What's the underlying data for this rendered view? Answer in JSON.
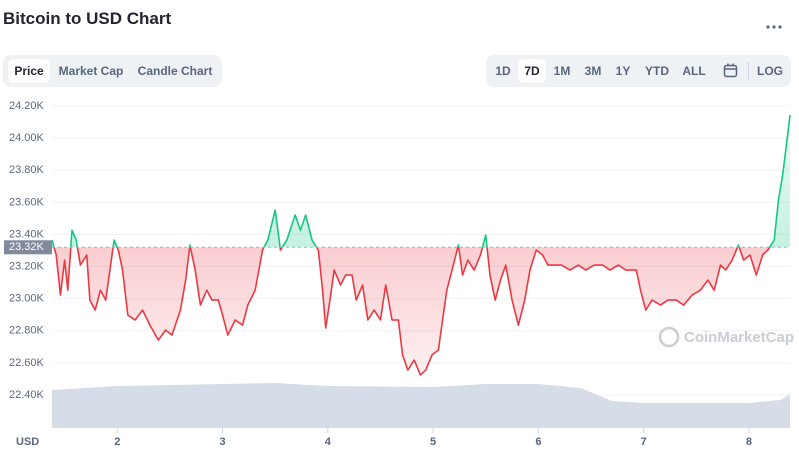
{
  "chart_data": {
    "type": "line",
    "title": "Bitcoin to USD Chart",
    "xlabel": "USD",
    "watermark": "CoinMarketCap",
    "x": [
      1.38,
      1.42,
      1.46,
      1.5,
      1.53,
      1.57,
      1.61,
      1.65,
      1.71,
      1.74,
      1.79,
      1.84,
      1.89,
      1.93,
      1.97,
      2.01,
      2.05,
      2.1,
      2.17,
      2.24,
      2.31,
      2.39,
      2.46,
      2.52,
      2.6,
      2.65,
      2.69,
      2.74,
      2.79,
      2.85,
      2.9,
      2.96,
      3.0,
      3.05,
      3.12,
      3.19,
      3.24,
      3.31,
      3.38,
      3.43,
      3.5,
      3.55,
      3.61,
      3.69,
      3.74,
      3.79,
      3.85,
      3.91,
      3.95,
      3.98,
      4.02,
      4.06,
      4.12,
      4.17,
      4.23,
      4.27,
      4.33,
      4.38,
      4.44,
      4.5,
      4.55,
      4.61,
      4.67,
      4.71,
      4.76,
      4.82,
      4.88,
      4.93,
      4.99,
      5.05,
      5.09,
      5.13,
      5.18,
      5.24,
      5.28,
      5.33,
      5.39,
      5.45,
      5.5,
      5.54,
      5.59,
      5.64,
      5.69,
      5.75,
      5.81,
      5.87,
      5.92,
      5.98,
      6.04,
      6.09,
      6.16,
      6.22,
      6.3,
      6.38,
      6.45,
      6.53,
      6.61,
      6.68,
      6.76,
      6.83,
      6.93,
      6.97,
      7.02,
      7.08,
      7.16,
      7.23,
      7.31,
      7.38,
      7.46,
      7.54,
      7.61,
      7.67,
      7.73,
      7.78,
      7.84,
      7.9,
      7.95,
      8.01,
      8.07,
      8.13,
      8.18,
      8.24,
      8.28,
      8.32,
      8.35,
      8.39
    ],
    "values": [
      23365,
      23272,
      23022,
      23240,
      23053,
      23427,
      23365,
      23209,
      23272,
      22991,
      22929,
      23053,
      22991,
      23178,
      23365,
      23303,
      23178,
      22898,
      22867,
      22929,
      22835,
      22742,
      22804,
      22773,
      22929,
      23116,
      23334,
      23178,
      22960,
      23053,
      22991,
      22991,
      22898,
      22773,
      22867,
      22835,
      22960,
      23053,
      23303,
      23365,
      23552,
      23303,
      23365,
      23521,
      23427,
      23521,
      23365,
      23303,
      23053,
      22817,
      22991,
      23178,
      23085,
      23147,
      23147,
      22991,
      23085,
      22867,
      22929,
      22867,
      23085,
      22867,
      22867,
      22649,
      22555,
      22617,
      22524,
      22555,
      22649,
      22680,
      22867,
      23053,
      23178,
      23334,
      23147,
      23240,
      23178,
      23272,
      23396,
      23147,
      22991,
      23116,
      23209,
      22991,
      22835,
      22991,
      23178,
      23303,
      23272,
      23209,
      23209,
      23209,
      23178,
      23209,
      23178,
      23209,
      23209,
      23178,
      23209,
      23178,
      23178,
      23053,
      22929,
      22991,
      22960,
      22991,
      22991,
      22960,
      23022,
      23053,
      23116,
      23053,
      23209,
      23178,
      23240,
      23334,
      23240,
      23272,
      23147,
      23272,
      23303,
      23365,
      23614,
      23770,
      23926,
      24144
    ],
    "up_color": "#16c784",
    "down_color": "#ea3943",
    "reference": {
      "value": 23320,
      "label": "23.32K"
    },
    "volume": {
      "x": [
        1.38,
        2.0,
        3.0,
        3.5,
        4.0,
        5.0,
        5.5,
        6.0,
        6.4,
        6.7,
        7.0,
        7.5,
        8.0,
        8.3,
        8.39
      ],
      "values": [
        38,
        42,
        44,
        45,
        42,
        41,
        44,
        44,
        40,
        27,
        25,
        25,
        25,
        28,
        34
      ],
      "color": "#cfd6e4"
    },
    "xlim": [
      1.38,
      8.39
    ],
    "xticks": [
      2,
      3,
      4,
      5,
      6,
      7,
      8
    ],
    "ylim": [
      22194,
      24269
    ],
    "yticks": [
      {
        "value": 22400,
        "label": "22.40K"
      },
      {
        "value": 22600,
        "label": "22.60K"
      },
      {
        "value": 22800,
        "label": "22.80K"
      },
      {
        "value": 23000,
        "label": "23.00K"
      },
      {
        "value": 23200,
        "label": "23.20K"
      },
      {
        "value": 23400,
        "label": "23.40K"
      },
      {
        "value": 23600,
        "label": "23.60K"
      },
      {
        "value": 23800,
        "label": "23.80K"
      },
      {
        "value": 24000,
        "label": "24.00K"
      },
      {
        "value": 24200,
        "label": "24.20K"
      }
    ],
    "grid": true
  },
  "ui": {
    "tabs": [
      "Price",
      "Market Cap",
      "Candle Chart"
    ],
    "ranges": [
      "1D",
      "7D",
      "1M",
      "3M",
      "1Y",
      "YTD",
      "ALL"
    ],
    "log": "LOG"
  }
}
